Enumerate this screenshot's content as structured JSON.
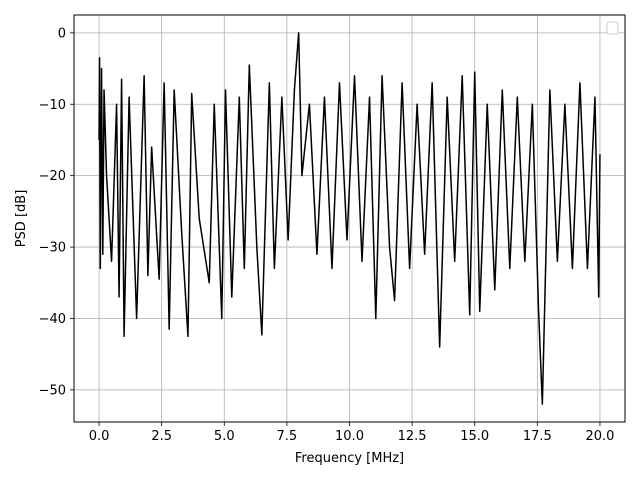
{
  "chart_data": {
    "type": "line",
    "title": "",
    "xlabel": "Frequency [MHz]",
    "ylabel": "PSD [dB]",
    "xlim": [
      -1,
      21
    ],
    "ylim": [
      -54.5,
      2.5
    ],
    "xticks": [
      0.0,
      2.5,
      5.0,
      7.5,
      10.0,
      12.5,
      15.0,
      17.5,
      20.0
    ],
    "xtick_labels": [
      "0.0",
      "2.5",
      "5.0",
      "7.5",
      "10.0",
      "12.5",
      "15.0",
      "17.5",
      "20.0"
    ],
    "yticks": [
      0,
      -10,
      -20,
      -30,
      -40,
      -50
    ],
    "ytick_labels": [
      "0",
      "−10",
      "−20",
      "−30",
      "−40",
      "−50"
    ],
    "grid": true,
    "legend": "top-right (empty)",
    "line_color": "#000000",
    "series": [
      {
        "x": [
          0.0,
          0.02,
          0.05,
          0.1,
          0.15,
          0.2,
          0.3,
          0.5,
          0.7,
          0.8,
          0.9,
          1.0,
          1.2,
          1.5,
          1.8,
          1.95,
          2.1,
          2.4,
          2.6,
          2.8,
          3.0,
          3.3,
          3.55,
          3.7,
          4.0,
          4.4,
          4.6,
          4.9,
          5.05,
          5.3,
          5.6,
          5.8,
          6.0,
          6.3,
          6.5,
          6.8,
          7.0,
          7.3,
          7.55,
          7.8,
          7.97,
          8.1,
          8.4,
          8.7,
          9.0,
          9.3,
          9.6,
          9.9,
          10.2,
          10.5,
          10.8,
          11.05,
          11.3,
          11.6,
          11.8,
          12.1,
          12.4,
          12.7,
          13.0,
          13.3,
          13.6,
          13.9,
          14.2,
          14.5,
          14.8,
          15.0,
          15.2,
          15.5,
          15.8,
          16.1,
          16.4,
          16.7,
          17.0,
          17.3,
          17.55,
          17.7,
          18.0,
          18.3,
          18.6,
          18.9,
          19.2,
          19.5,
          19.8,
          19.95,
          20.0
        ],
        "y": [
          -15,
          -3.5,
          -33,
          -5,
          -31,
          -8,
          -20,
          -32,
          -10,
          -37,
          -6.5,
          -42.5,
          -9,
          -40,
          -6,
          -34,
          -16,
          -34.5,
          -7,
          -41.5,
          -8,
          -28,
          -42.5,
          -8.5,
          -26,
          -35,
          -10,
          -40,
          -8,
          -37,
          -9,
          -33,
          -4.5,
          -30,
          -42.3,
          -7,
          -33,
          -9,
          -29,
          -8,
          0,
          -20,
          -10,
          -31,
          -9,
          -33,
          -7,
          -29,
          -6,
          -32,
          -9,
          -40,
          -6,
          -30,
          -37.5,
          -7,
          -33,
          -10,
          -31,
          -7,
          -44,
          -9,
          -32,
          -6,
          -39.5,
          -5.5,
          -39,
          -10,
          -36,
          -8,
          -33,
          -9,
          -32,
          -10,
          -39,
          -52,
          -8,
          -32,
          -10,
          -33,
          -7,
          -33,
          -9,
          -37,
          -17
        ]
      }
    ]
  }
}
